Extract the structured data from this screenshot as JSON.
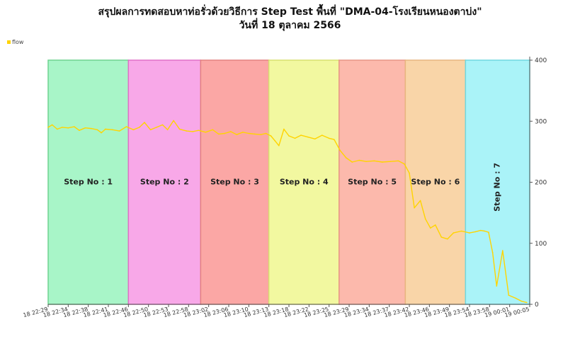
{
  "title_line1": "สรุปผลการทดสอบหาท่อรั่วด้วยวิธีการ Step Test พื้นที่ \"DMA-04-โรงเรียนหนองตาบ่ง\"",
  "title_line2": "วันที่ 18 ตุลาคม 2566",
  "legend": {
    "label": "flow",
    "color": "#ffd400"
  },
  "chart_data": {
    "type": "line",
    "title": "สรุปผลการทดสอบหาท่อรั่วด้วยวิธีการ Step Test พื้นที่ \"DMA-04-โรงเรียนหนองตาบ่ง\" วันที่ 18 ตุลาคม 2566",
    "xlabel": "",
    "ylabel": "",
    "ylim": [
      0,
      400
    ],
    "y_ticks": [
      "0",
      "100",
      "200",
      "300",
      "400"
    ],
    "x_ticks": [
      "18 22:29",
      "18 22:34",
      "18 22:38",
      "18 22:41",
      "18 22:46",
      "18 22:50",
      "18 22:53",
      "18 22:58",
      "18 23:02",
      "18 23:06",
      "18 23:10",
      "18 23:13",
      "18 23:18",
      "18 23:22",
      "18 23:25",
      "18 23:29",
      "18 23:34",
      "18 23:37",
      "18 23:42",
      "18 23:46",
      "18 23:49",
      "18 23:54",
      "18 23:58",
      "19 00:01",
      "19 00:05"
    ],
    "x_domain": [
      0,
      24
    ],
    "grid": false,
    "legend_position": "top-left",
    "series": [
      {
        "name": "flow",
        "color": "#ffd400",
        "points": [
          [
            0.0,
            290
          ],
          [
            0.2,
            294
          ],
          [
            0.45,
            287
          ],
          [
            0.7,
            290
          ],
          [
            1.0,
            289
          ],
          [
            1.3,
            291
          ],
          [
            1.55,
            285
          ],
          [
            1.85,
            289
          ],
          [
            2.15,
            288
          ],
          [
            2.45,
            286
          ],
          [
            2.65,
            281
          ],
          [
            2.85,
            287
          ],
          [
            3.2,
            286
          ],
          [
            3.55,
            284
          ],
          [
            3.9,
            291
          ],
          [
            4.25,
            286
          ],
          [
            4.55,
            290
          ],
          [
            4.8,
            298
          ],
          [
            5.1,
            286
          ],
          [
            5.4,
            290
          ],
          [
            5.7,
            294
          ],
          [
            5.95,
            286
          ],
          [
            6.25,
            301
          ],
          [
            6.55,
            287
          ],
          [
            6.9,
            284
          ],
          [
            7.2,
            283
          ],
          [
            7.5,
            285
          ],
          [
            7.85,
            282
          ],
          [
            8.2,
            286
          ],
          [
            8.5,
            279
          ],
          [
            8.8,
            280
          ],
          [
            9.1,
            283
          ],
          [
            9.4,
            278
          ],
          [
            9.7,
            282
          ],
          [
            10.0,
            280
          ],
          [
            10.3,
            279
          ],
          [
            10.6,
            278
          ],
          [
            10.85,
            280
          ],
          [
            11.1,
            276
          ],
          [
            11.3,
            268
          ],
          [
            11.5,
            260
          ],
          [
            11.75,
            287
          ],
          [
            12.0,
            276
          ],
          [
            12.3,
            272
          ],
          [
            12.6,
            277
          ],
          [
            12.95,
            274
          ],
          [
            13.3,
            271
          ],
          [
            13.65,
            277
          ],
          [
            14.0,
            272
          ],
          [
            14.25,
            270
          ],
          [
            14.55,
            252
          ],
          [
            14.85,
            240
          ],
          [
            15.15,
            233
          ],
          [
            15.5,
            236
          ],
          [
            15.85,
            234
          ],
          [
            16.25,
            235
          ],
          [
            16.65,
            233
          ],
          [
            17.05,
            234
          ],
          [
            17.45,
            235
          ],
          [
            17.75,
            230
          ],
          [
            18.0,
            215
          ],
          [
            18.25,
            158
          ],
          [
            18.55,
            170
          ],
          [
            18.8,
            140
          ],
          [
            19.05,
            125
          ],
          [
            19.3,
            130
          ],
          [
            19.6,
            110
          ],
          [
            19.9,
            107
          ],
          [
            20.2,
            117
          ],
          [
            20.6,
            120
          ],
          [
            21.0,
            117
          ],
          [
            21.3,
            119
          ],
          [
            21.55,
            121
          ],
          [
            21.75,
            120
          ],
          [
            21.95,
            118
          ],
          [
            22.15,
            85
          ],
          [
            22.35,
            30
          ],
          [
            22.65,
            88
          ],
          [
            22.95,
            15
          ],
          [
            23.3,
            10
          ],
          [
            23.6,
            5
          ],
          [
            23.85,
            3
          ]
        ]
      }
    ],
    "step_regions": [
      {
        "label": "Step No : 1",
        "start": 0.0,
        "end": 4.0,
        "color": "#a8f5c8",
        "border": "#6fd38f",
        "vertical": false
      },
      {
        "label": "Step No : 2",
        "start": 4.0,
        "end": 7.6,
        "color": "#f8a8e8",
        "border": "#e070c8",
        "vertical": false
      },
      {
        "label": "Step No : 3",
        "start": 7.6,
        "end": 11.0,
        "color": "#fba7a5",
        "border": "#e48280",
        "vertical": false
      },
      {
        "label": "Step No : 4",
        "start": 11.0,
        "end": 14.5,
        "color": "#f2f8a0",
        "border": "#d8e070",
        "vertical": false
      },
      {
        "label": "Step No : 5",
        "start": 14.5,
        "end": 17.8,
        "color": "#fcb9ac",
        "border": "#e89585",
        "vertical": false
      },
      {
        "label": "Step No : 6",
        "start": 17.8,
        "end": 20.8,
        "color": "#f9d5a8",
        "border": "#e8b680",
        "vertical": false
      },
      {
        "label": "Step No : 7",
        "start": 20.8,
        "end": 24.0,
        "color": "#aaf3f8",
        "border": "#70d8e0",
        "vertical": true
      }
    ]
  }
}
